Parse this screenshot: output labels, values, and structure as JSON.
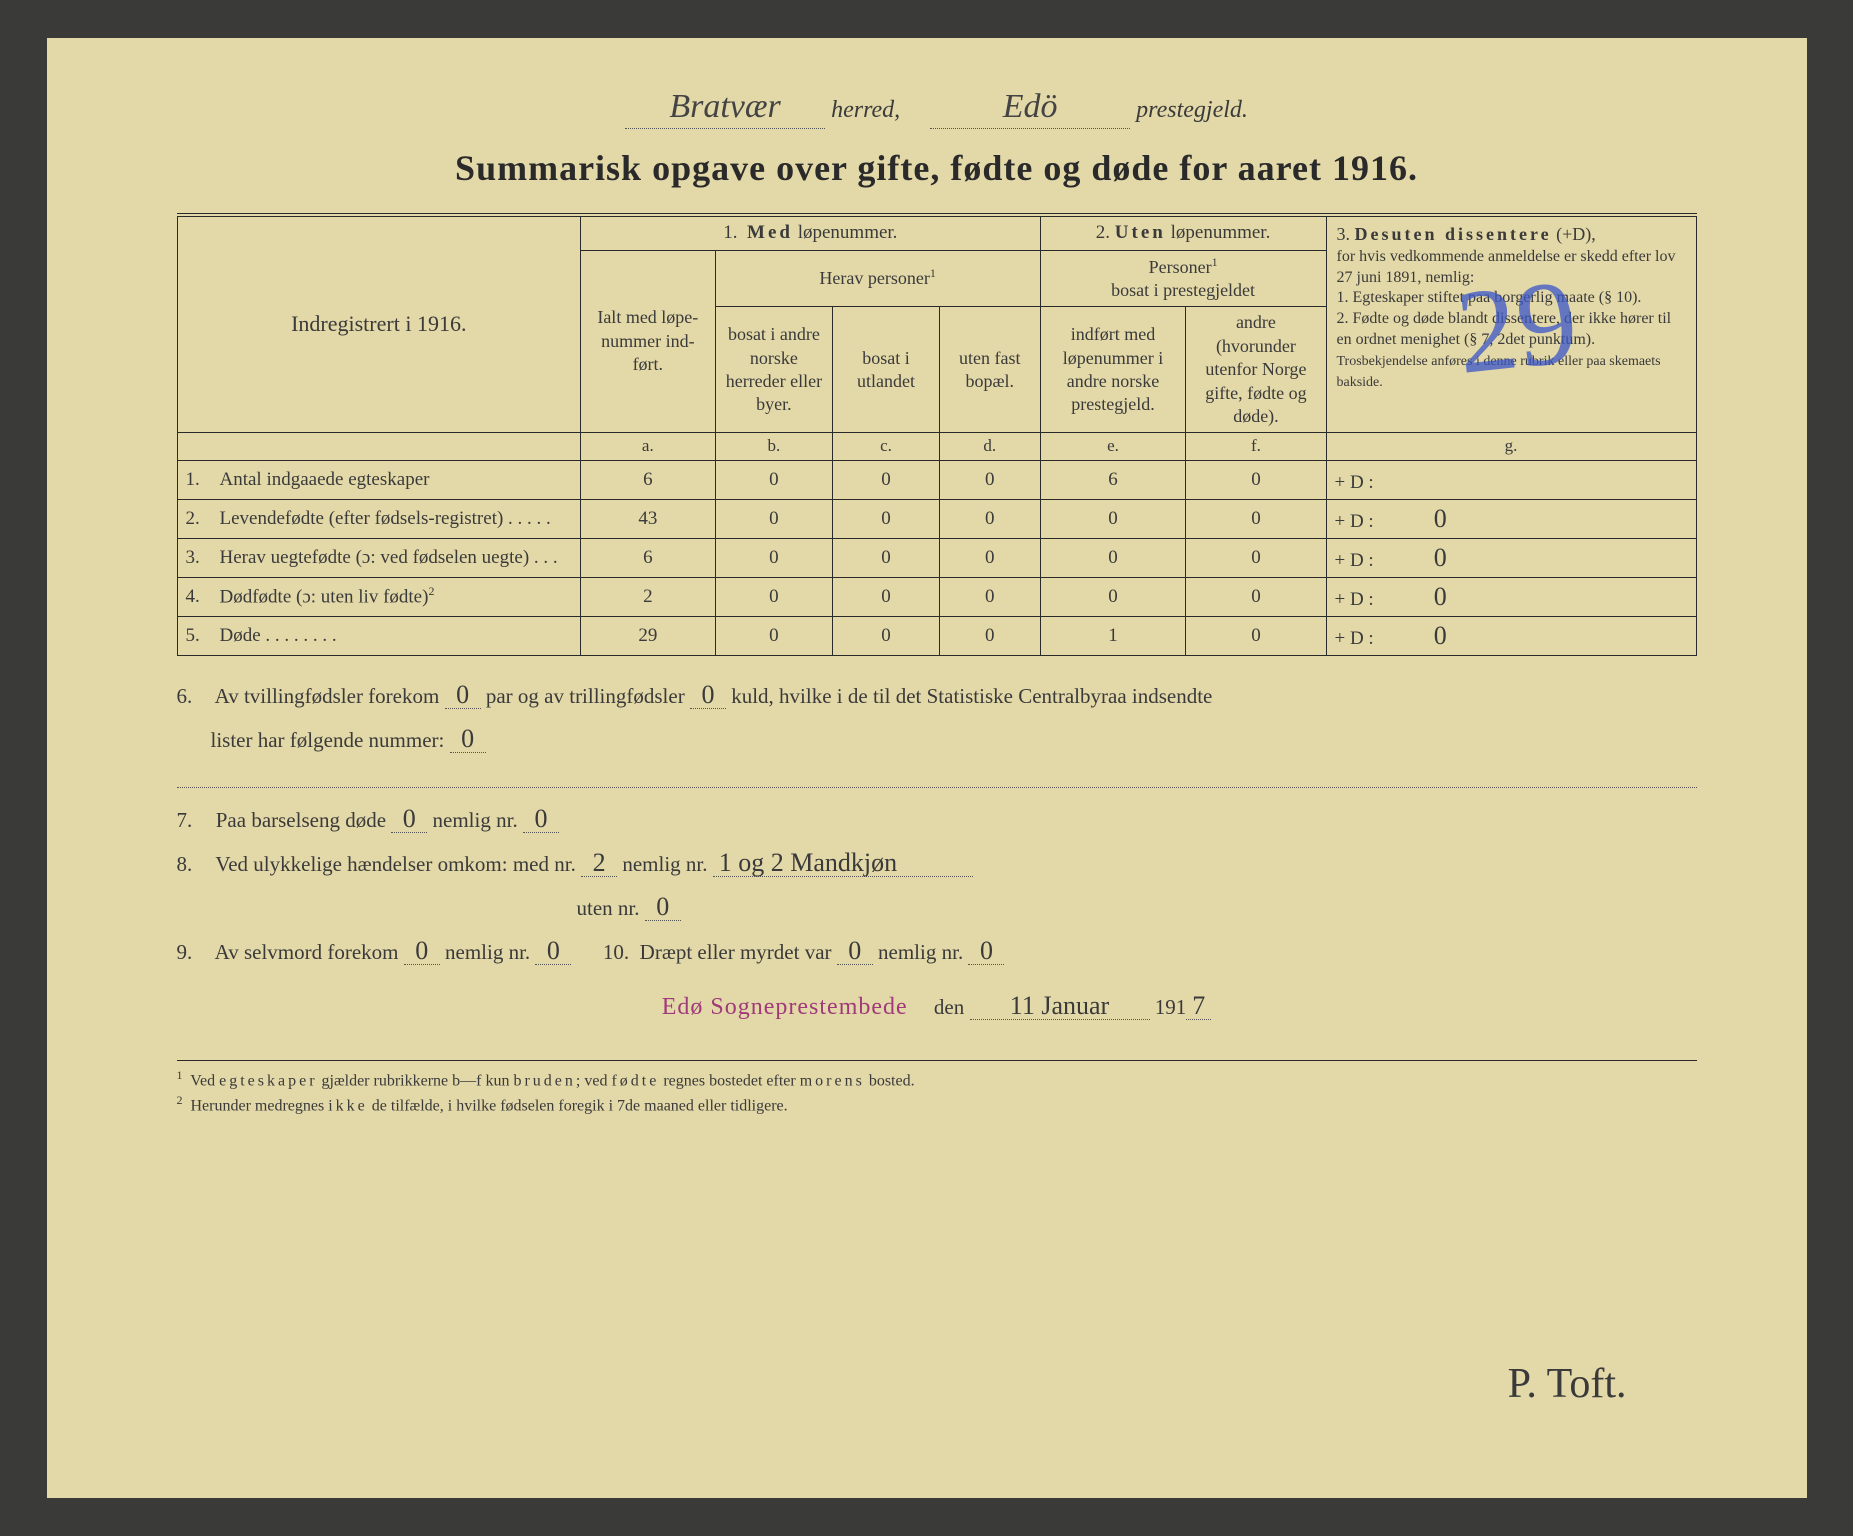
{
  "header": {
    "herred_value": "Bratvær",
    "herred_label": "herred,",
    "prestegjeld_value": "Edö",
    "prestegjeld_label": "prestegjeld."
  },
  "title": "Summarisk opgave over gifte, fødte og døde for aaret 1916.",
  "table": {
    "left_header": "Indregistrert i 1916.",
    "section1": {
      "title": "1. Med løpenummer.",
      "ialt": "Ialt med løpe-nummer ind-ført.",
      "herav": "Herav personer",
      "sup": "1",
      "col_b": "bosat i andre norske herreder eller byer.",
      "col_c": "bosat i utlandet",
      "col_d": "uten fast bopæl."
    },
    "section2": {
      "title": "2. Uten løpenummer.",
      "sub": "Personer",
      "sup": "1",
      "sub2": "bosat i prestegjeldet",
      "col_e": "indført med løpenummer i andre norske prestegjeld.",
      "col_f": "andre (hvorunder utenfor Norge gifte, fødte og døde)."
    },
    "section3": {
      "title": "3. Desuten dissentere (+D),",
      "body": "for hvis vedkommende anmeldelse er skedd efter lov 27 juni 1891, nemlig:",
      "item1": "1. Egteskaper stiftet paa borgerlig maate (§ 10).",
      "item2": "2. Fødte og døde blandt dissentere, der ikke hører til en ordnet menighet (§ 7, 2det punktum).",
      "note": "Trosbekjendelse anføres i denne rubrik eller paa skemaets bakside."
    },
    "letters": {
      "a": "a.",
      "b": "b.",
      "c": "c.",
      "d": "d.",
      "e": "e.",
      "f": "f.",
      "g": "g."
    },
    "rows": [
      {
        "label_num": "1.",
        "label": "Antal indgaaede egteskaper",
        "a": "6",
        "b": "0",
        "c": "0",
        "d": "0",
        "e": "6",
        "f": "0",
        "g_prefix": "+ D :",
        "g": ""
      },
      {
        "label_num": "2.",
        "label": "Levendefødte (efter fødsels-registret)  .  .  .  .  .",
        "a": "43",
        "b": "0",
        "c": "0",
        "d": "0",
        "e": "0",
        "f": "0",
        "g_prefix": "+ D :",
        "g": "0"
      },
      {
        "label_num": "3.",
        "label": "Herav uegtefødte (ɔ: ved fødselen uegte)  .  .  .",
        "a": "6",
        "b": "0",
        "c": "0",
        "d": "0",
        "e": "0",
        "f": "0",
        "g_prefix": "+ D :",
        "g": "0"
      },
      {
        "label_num": "4.",
        "label": "Dødfødte (ɔ: uten liv fødte)",
        "sup": "2",
        "a": "2",
        "b": "0",
        "c": "0",
        "d": "0",
        "e": "0",
        "f": "0",
        "g_prefix": "+ D :",
        "g": "0"
      },
      {
        "label_num": "5.",
        "label": "Døde .  .  .  .  .  .  .  .",
        "a": "29",
        "b": "0",
        "c": "0",
        "d": "0",
        "e": "1",
        "f": "0",
        "g_prefix": "+ D :",
        "g": "0"
      }
    ]
  },
  "q6": {
    "num": "6.",
    "text_a": "Av tvillingfødsler forekom",
    "val_a": "0",
    "text_b": "par og av trillingfødsler",
    "val_b": "0",
    "text_c": "kuld, hvilke i de til det Statistiske Centralbyraa indsendte",
    "text_d": "lister har følgende nummer:",
    "val_c": "0"
  },
  "q7": {
    "num": "7.",
    "text": "Paa barselseng døde",
    "v1": "0",
    "text2": "nemlig nr.",
    "v2": "0"
  },
  "q8": {
    "num": "8.",
    "text": "Ved ulykkelige hændelser omkom: med nr.",
    "v1": "2",
    "text2": "nemlig nr.",
    "v2": "1 og 2 Mandkjøn",
    "text3": "uten nr.",
    "v3": "0"
  },
  "q9": {
    "num": "9.",
    "text": "Av selvmord forekom",
    "v1": "0",
    "text2": "nemlig nr.",
    "v2": "0",
    "num10": "10.",
    "text10": "Dræpt eller myrdet var",
    "v3": "0",
    "text10b": "nemlig nr.",
    "v4": "0"
  },
  "date_line": {
    "stamp": "Edø Sogneprestembede",
    "den": "den",
    "date": "11 Januar",
    "year_prefix": "191",
    "year_last": "7"
  },
  "signature": "P. Toft.",
  "footnotes": {
    "f1_num": "1",
    "f1": "Ved egteskaper gjælder rubrikkerne b—f kun bruden; ved fødte regnes bostedet efter morens bosted.",
    "f2_num": "2",
    "f2": "Herunder medregnes ikke de tilfælde, i hvilke fødselen foregik i 7de maaned eller tidligere."
  },
  "blue_mark": "29",
  "colors": {
    "paper_bg": "#e3d8a8",
    "ink": "#3a3a3a",
    "stamp": "#a03a7a",
    "blue": "#3a56c7"
  }
}
